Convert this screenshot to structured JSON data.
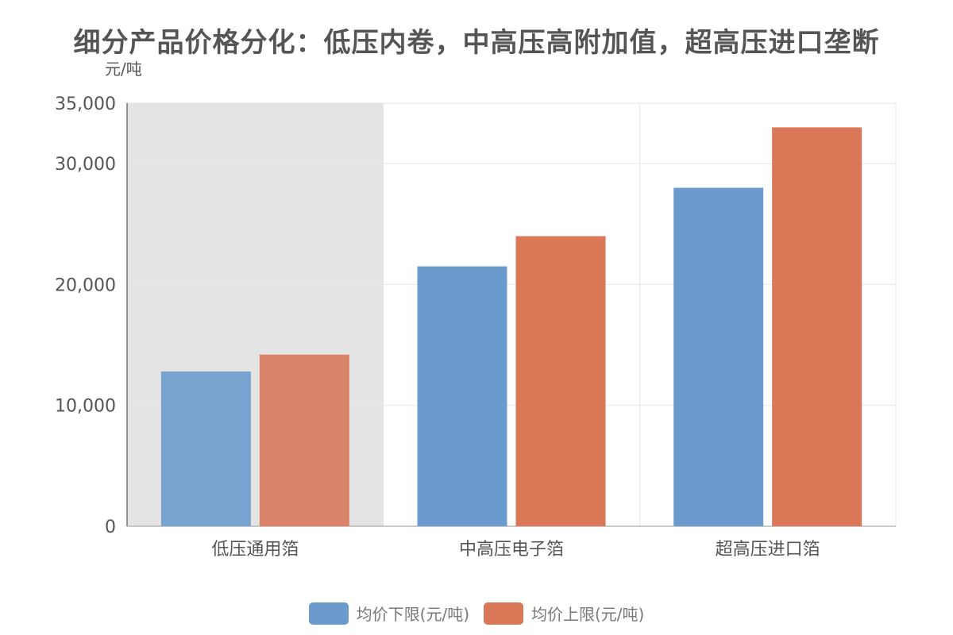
{
  "chart_data": {
    "type": "bar",
    "title": "细分产品价格分化：低压内卷，中高压高附加值，超高压进口垄断",
    "ylabel": "元/吨",
    "categories": [
      "低压通用箔",
      "中高压电子箔",
      "超高压进口箔"
    ],
    "series": [
      {
        "name": "均价下限(元/吨)",
        "values": [
          12800,
          21500,
          28000
        ],
        "color": "#6b9bcc"
      },
      {
        "name": "均价上限(元/吨)",
        "values": [
          14200,
          24000,
          33000
        ],
        "color": "#d97757"
      }
    ],
    "yticks": [
      0,
      10000,
      20000,
      30000,
      35000
    ],
    "ytick_labels": [
      "0",
      "10,000",
      "20,000",
      "30,000",
      "35,000"
    ],
    "ylim": [
      0,
      35000
    ],
    "highlight_category": "低压通用箔",
    "highlight_color": "#e4e4e4",
    "grid": true,
    "legend_position": "bottom"
  }
}
